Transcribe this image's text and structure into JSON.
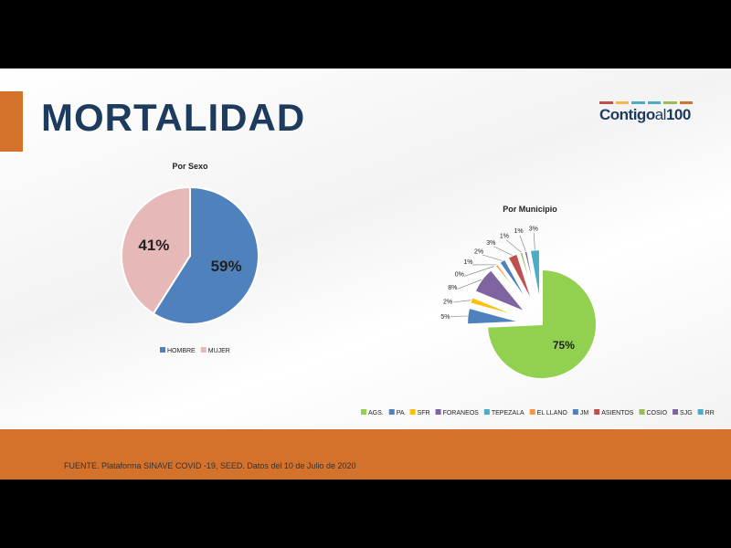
{
  "title": "MORTALIDAD",
  "logo": {
    "text": "Contigo",
    "text2": "al",
    "text3": "100",
    "bar_colors": [
      "#c0504d",
      "#f2b84b",
      "#4bacc6",
      "#4bacc6",
      "#9bbb59",
      "#d4722c"
    ]
  },
  "footer": {
    "source": "FUENTE. Plataforma SINAVE COVID -19, SEED. Datos del 10 de Julio de 2020",
    "color": "#d4722c"
  },
  "chart_data": [
    {
      "type": "pie",
      "title": "Por Sexo",
      "legend": "bottom",
      "categories": [
        "HOMBRE",
        "MUJER"
      ],
      "values": [
        59,
        41
      ],
      "labels": [
        "59%",
        "41%"
      ],
      "colors": [
        "#4f81bd",
        "#e6b9b8"
      ]
    },
    {
      "type": "pie",
      "title": "Por Municipio",
      "legend": "bottom",
      "exploded": true,
      "categories": [
        "AGS.",
        "PA",
        "SFR",
        "FORANEOS",
        "TEPEZALA",
        "EL LLANO",
        "JM",
        "ASIENTOS",
        "COSIO",
        "SJG",
        "RR"
      ],
      "values": [
        75,
        5,
        2,
        8,
        0,
        1,
        2,
        3,
        1,
        1,
        3
      ],
      "labels": [
        "75%",
        "5%",
        "2%",
        "8%",
        "0%",
        "1%",
        "2%",
        "3%",
        "1%",
        "1%",
        "3%"
      ],
      "colors": [
        "#92d050",
        "#4f81bd",
        "#ffc000",
        "#8064a2",
        "#4bacc6",
        "#f79646",
        "#4f81bd",
        "#c0504d",
        "#9bbb59",
        "#8064a2",
        "#4bacc6"
      ]
    }
  ]
}
